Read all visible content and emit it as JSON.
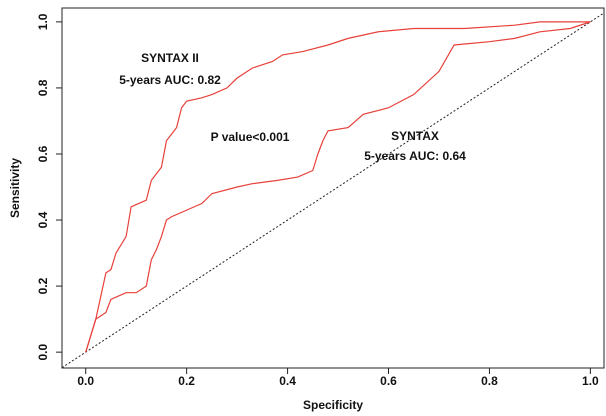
{
  "chart_data": {
    "type": "line",
    "x_label": "Specificity",
    "y_label": "Sensitivity",
    "xlim": [
      -0.047,
      1.027
    ],
    "ylim": [
      -0.048,
      1.042
    ],
    "xticks": [
      {
        "value": 0,
        "label": "0.0"
      },
      0.2,
      0.4,
      0.6,
      0.8,
      {
        "value": 1,
        "label": "1.0"
      }
    ],
    "yticks": [
      {
        "value": 0,
        "label": "0.0"
      },
      0.2,
      0.4,
      0.6,
      0.8,
      {
        "value": 1,
        "label": "1.0"
      }
    ],
    "reference_line": true,
    "annotation": "P value<0.001",
    "series": [
      {
        "name": "SYNTAX II",
        "auc_label": "5-years AUC: 0.82",
        "color": "#e8403a",
        "x": [
          0,
          0.01,
          0.02,
          0.03,
          0.04,
          0.05,
          0.06,
          0.08,
          0.09,
          0.12,
          0.13,
          0.15,
          0.16,
          0.18,
          0.19,
          0.2,
          0.23,
          0.25,
          0.28,
          0.3,
          0.33,
          0.37,
          0.39,
          0.43,
          0.48,
          0.52,
          0.58,
          0.65,
          0.75,
          0.85,
          0.9,
          1.0
        ],
        "values": [
          0,
          0.05,
          0.1,
          0.17,
          0.24,
          0.25,
          0.3,
          0.35,
          0.44,
          0.46,
          0.52,
          0.56,
          0.64,
          0.68,
          0.74,
          0.76,
          0.77,
          0.78,
          0.8,
          0.83,
          0.86,
          0.88,
          0.9,
          0.91,
          0.93,
          0.95,
          0.97,
          0.98,
          0.98,
          0.99,
          1.0,
          1.0
        ]
      },
      {
        "name": "SYNTAX",
        "auc_label": "5-years AUC: 0.64",
        "color": "#e8403a",
        "x": [
          0,
          0.01,
          0.02,
          0.04,
          0.05,
          0.08,
          0.1,
          0.12,
          0.13,
          0.14,
          0.15,
          0.16,
          0.17,
          0.2,
          0.23,
          0.25,
          0.3,
          0.33,
          0.38,
          0.42,
          0.45,
          0.46,
          0.47,
          0.48,
          0.52,
          0.55,
          0.6,
          0.65,
          0.7,
          0.73,
          0.8,
          0.85,
          0.9,
          0.96,
          1.0
        ],
        "values": [
          0,
          0.05,
          0.1,
          0.12,
          0.16,
          0.18,
          0.18,
          0.2,
          0.28,
          0.31,
          0.35,
          0.4,
          0.41,
          0.43,
          0.45,
          0.48,
          0.5,
          0.51,
          0.52,
          0.53,
          0.55,
          0.6,
          0.64,
          0.67,
          0.68,
          0.72,
          0.74,
          0.78,
          0.85,
          0.93,
          0.94,
          0.95,
          0.97,
          0.98,
          1.0
        ]
      }
    ]
  }
}
